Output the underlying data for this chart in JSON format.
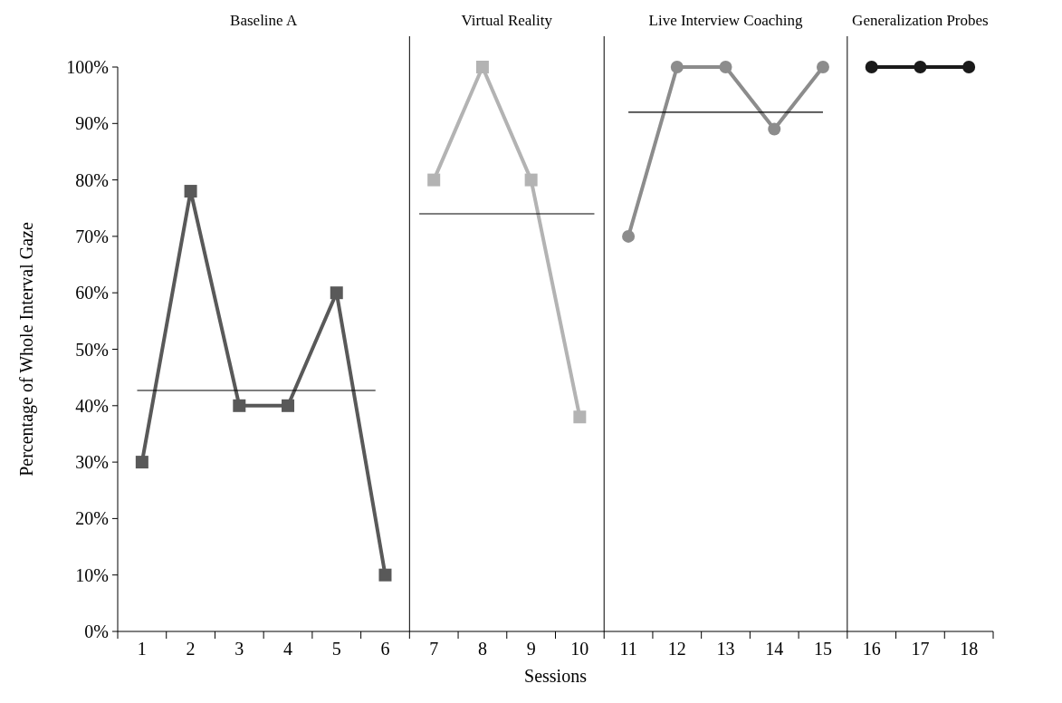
{
  "chart_data": {
    "type": "line",
    "xlabel": "Sessions",
    "ylabel": "Percentage of Whole Interval Gaze",
    "xlim": [
      0.5,
      18.5
    ],
    "xticks": [
      1,
      2,
      3,
      4,
      5,
      6,
      7,
      8,
      9,
      10,
      11,
      12,
      13,
      14,
      15,
      16,
      17,
      18
    ],
    "ylim": [
      0,
      100
    ],
    "yticks": [
      {
        "value": 0,
        "label": "0%"
      },
      {
        "value": 10,
        "label": "10%"
      },
      {
        "value": 20,
        "label": "20%"
      },
      {
        "value": 30,
        "label": "30%"
      },
      {
        "value": 40,
        "label": "40%"
      },
      {
        "value": 50,
        "label": "50%"
      },
      {
        "value": 60,
        "label": "60%"
      },
      {
        "value": 70,
        "label": "70%"
      },
      {
        "value": 80,
        "label": "80%"
      },
      {
        "value": 90,
        "label": "90%"
      },
      {
        "value": 100,
        "label": "100%"
      }
    ],
    "grid": false,
    "series": [
      {
        "color": "#595959",
        "marker": "square",
        "x": [
          1,
          2,
          3,
          4,
          5,
          6
        ],
        "values": [
          30,
          78,
          40,
          40,
          60,
          10
        ]
      },
      {
        "color": "#b3b3b3",
        "marker": "square",
        "x": [
          7,
          8,
          9,
          10
        ],
        "values": [
          80,
          100,
          80,
          38
        ]
      },
      {
        "color": "#8c8c8c",
        "marker": "circle",
        "x": [
          11,
          12,
          13,
          14,
          15
        ],
        "values": [
          70,
          100,
          100,
          89,
          100
        ]
      },
      {
        "color": "#1a1a1a",
        "marker": "circle",
        "x": [
          16,
          17,
          18
        ],
        "values": [
          100,
          100,
          100
        ]
      },
      {
        "color": "#000000",
        "marker": "none",
        "x": [
          0.9,
          5.8
        ],
        "values": [
          42.7,
          42.7
        ]
      },
      {
        "color": "#000000",
        "marker": "none",
        "x": [
          6.7,
          10.3
        ],
        "values": [
          74,
          74
        ]
      },
      {
        "color": "#000000",
        "marker": "none",
        "x": [
          11,
          15
        ],
        "values": [
          92,
          92
        ]
      }
    ],
    "ref_lines": [
      {
        "axis": "x",
        "value": 6.5
      },
      {
        "axis": "x",
        "value": 10.5
      },
      {
        "axis": "x",
        "value": 15.5
      }
    ],
    "annotations": [
      "Baseline A",
      "Virtual Reality",
      "Live Interview Coaching",
      "Generalization Probes"
    ]
  }
}
